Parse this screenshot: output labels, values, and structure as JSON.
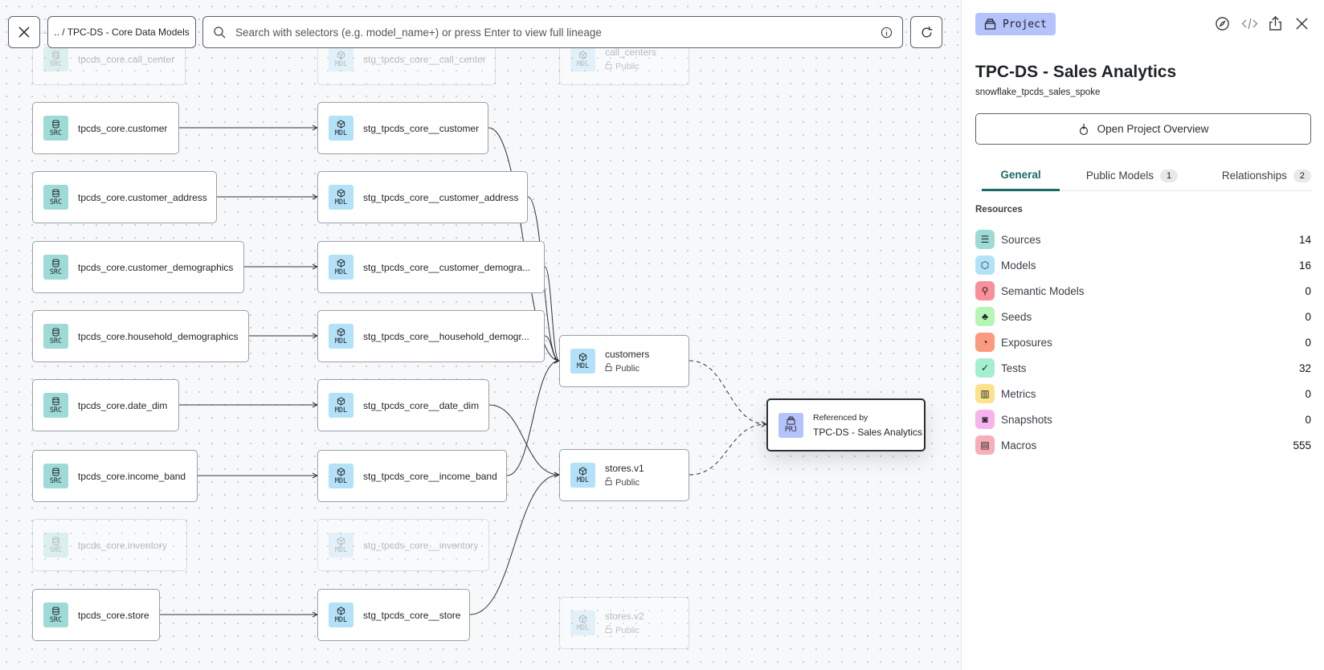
{
  "toolbar": {
    "breadcrumb": ".. / TPC-DS - Core Data Models",
    "search_placeholder": "Search with selectors (e.g. model_name+) or press Enter to view full lineage"
  },
  "graph": {
    "nodes": [
      {
        "id": "s0",
        "type": "SRC",
        "label": "tpcds_core.call_center",
        "faded": true
      },
      {
        "id": "s1",
        "type": "SRC",
        "label": "tpcds_core.customer"
      },
      {
        "id": "s2",
        "type": "SRC",
        "label": "tpcds_core.customer_address"
      },
      {
        "id": "s3",
        "type": "SRC",
        "label": "tpcds_core.customer_demographics"
      },
      {
        "id": "s4",
        "type": "SRC",
        "label": "tpcds_core.household_demographics"
      },
      {
        "id": "s5",
        "type": "SRC",
        "label": "tpcds_core.date_dim"
      },
      {
        "id": "s6",
        "type": "SRC",
        "label": "tpcds_core.income_band"
      },
      {
        "id": "s7",
        "type": "SRC",
        "label": "tpcds_core.inventory",
        "faded": true
      },
      {
        "id": "s8",
        "type": "SRC",
        "label": "tpcds_core.store"
      },
      {
        "id": "m0",
        "type": "MDL",
        "label": "stg_tpcds_core__call_center",
        "faded": true
      },
      {
        "id": "m1",
        "type": "MDL",
        "label": "stg_tpcds_core__customer"
      },
      {
        "id": "m2",
        "type": "MDL",
        "label": "stg_tpcds_core__customer_address"
      },
      {
        "id": "m3",
        "type": "MDL",
        "label": "stg_tpcds_core__customer_demogra..."
      },
      {
        "id": "m4",
        "type": "MDL",
        "label": "stg_tpcds_core__household_demogr..."
      },
      {
        "id": "m5",
        "type": "MDL",
        "label": "stg_tpcds_core__date_dim"
      },
      {
        "id": "m6",
        "type": "MDL",
        "label": "stg_tpcds_core__income_band"
      },
      {
        "id": "m7",
        "type": "MDL",
        "label": "stg_tpcds_core__inventory",
        "faded": true
      },
      {
        "id": "m8",
        "type": "MDL",
        "label": "stg_tpcds_core__store"
      },
      {
        "id": "p0",
        "type": "MDL",
        "label": "call_centers",
        "access": "Public",
        "faded": true
      },
      {
        "id": "p1",
        "type": "MDL",
        "label": "customers",
        "access": "Public"
      },
      {
        "id": "p2",
        "type": "MDL",
        "label": "stores.v1",
        "access": "Public"
      },
      {
        "id": "p3",
        "type": "MDL",
        "label": "stores.v2",
        "access": "Public",
        "faded": true
      },
      {
        "id": "prj",
        "type": "PRJ",
        "caption": "Referenced by",
        "label": "TPC-DS - Sales Analytics"
      }
    ],
    "edges": [
      [
        "s1",
        "m1"
      ],
      [
        "s2",
        "m2"
      ],
      [
        "s3",
        "m3"
      ],
      [
        "s4",
        "m4"
      ],
      [
        "s5",
        "m5"
      ],
      [
        "s6",
        "m6"
      ],
      [
        "s8",
        "m8"
      ],
      [
        "m1",
        "p1"
      ],
      [
        "m2",
        "p1"
      ],
      [
        "m3",
        "p1"
      ],
      [
        "m4",
        "p1"
      ],
      [
        "m6",
        "p1"
      ],
      [
        "m5",
        "p2"
      ],
      [
        "m8",
        "p2"
      ],
      [
        "p1",
        "prj",
        "dashed"
      ],
      [
        "p2",
        "prj",
        "dashed"
      ]
    ]
  },
  "panel": {
    "badge": "Project",
    "title": "TPC-DS - Sales Analytics",
    "subtitle": "snowflake_tpcds_sales_spoke",
    "open_button": "Open Project Overview",
    "tabs": [
      {
        "label": "General",
        "active": true
      },
      {
        "label": "Public Models",
        "count": "1"
      },
      {
        "label": "Relationships",
        "count": "2"
      }
    ],
    "resources_label": "Resources",
    "resources": [
      {
        "label": "Sources",
        "value": "14",
        "color": "#9edbd6",
        "icon": "database-icon"
      },
      {
        "label": "Models",
        "value": "16",
        "color": "#b3e1f7",
        "icon": "cube-icon"
      },
      {
        "label": "Semantic Models",
        "value": "0",
        "color": "#f98f9a",
        "icon": "graph-icon"
      },
      {
        "label": "Seeds",
        "value": "0",
        "color": "#b6f5b4",
        "icon": "sprout-icon"
      },
      {
        "label": "Exposures",
        "value": "0",
        "color": "#fb9a7c",
        "icon": "gauge-icon"
      },
      {
        "label": "Tests",
        "value": "32",
        "color": "#a3efd0",
        "icon": "clipboard-check-icon"
      },
      {
        "label": "Metrics",
        "value": "0",
        "color": "#fbe28b",
        "icon": "bar-chart-icon"
      },
      {
        "label": "Snapshots",
        "value": "0",
        "color": "#f7b3ec",
        "icon": "camera-icon"
      },
      {
        "label": "Macros",
        "value": "555",
        "color": "#f9aeb7",
        "icon": "document-icon"
      }
    ]
  }
}
